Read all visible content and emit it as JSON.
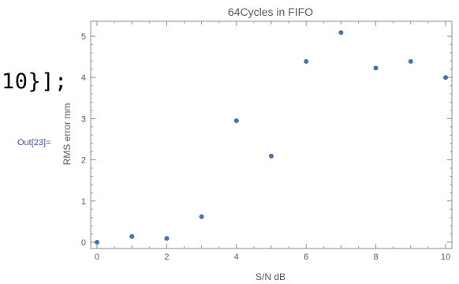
{
  "notebook": {
    "input_tail": "10}];",
    "output_label": "Out[23]="
  },
  "chart_data": {
    "type": "scatter",
    "title": "64Cycles in FIFO",
    "xlabel": "S/N dB",
    "ylabel": "RMS error mm",
    "xlim": [
      0,
      10
    ],
    "ylim": [
      0,
      5
    ],
    "xticks": [
      0,
      2,
      4,
      6,
      8,
      10
    ],
    "yticks": [
      0,
      1,
      2,
      3,
      4,
      5
    ],
    "grid": false,
    "x": [
      0,
      1,
      2,
      3,
      4,
      5,
      6,
      7,
      8,
      9,
      10
    ],
    "y": [
      0.0,
      0.14,
      0.09,
      0.62,
      2.95,
      2.09,
      4.39,
      5.09,
      4.23,
      4.39,
      4.0
    ],
    "colors": {
      "points": "#4a72a8",
      "axes": "#8c8c8c",
      "text": "#595959"
    }
  }
}
